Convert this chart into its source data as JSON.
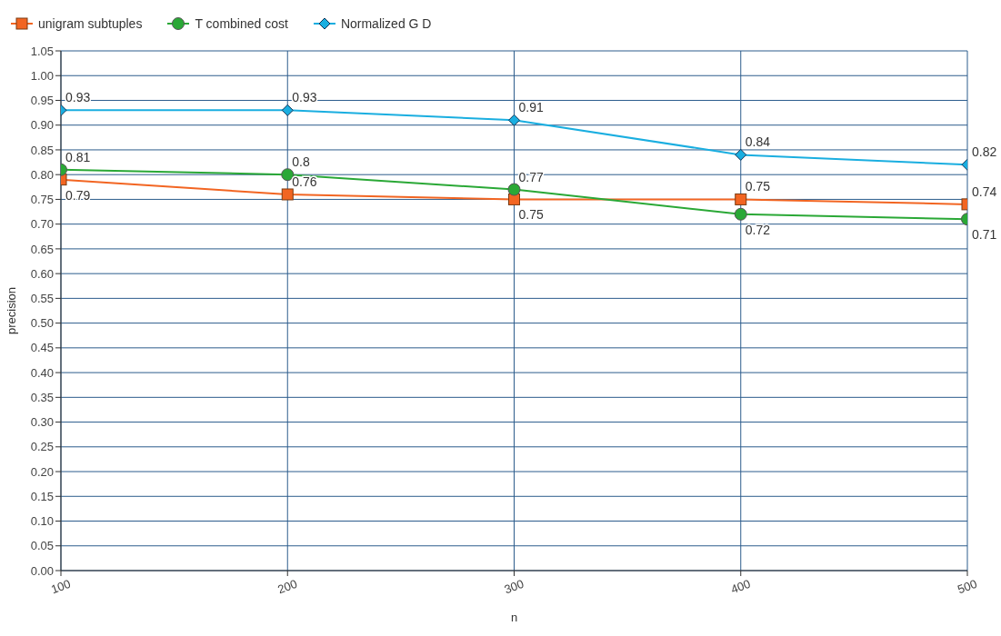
{
  "chart_data": {
    "type": "line",
    "xlabel": "n",
    "ylabel": "precision",
    "x": [
      100,
      200,
      300,
      400,
      500
    ],
    "xlim": [
      100,
      500
    ],
    "xticks": [
      100,
      200,
      300,
      400,
      500
    ],
    "ylim": [
      0,
      1.05
    ],
    "yticks": [
      {
        "value": 0,
        "label": "0.00"
      },
      {
        "value": 0.05,
        "label": "0.05"
      },
      {
        "value": 0.1,
        "label": "0.10"
      },
      {
        "value": 0.15,
        "label": "0.15"
      },
      {
        "value": 0.2,
        "label": "0.20"
      },
      {
        "value": 0.25,
        "label": "0.25"
      },
      {
        "value": 0.3,
        "label": "0.30"
      },
      {
        "value": 0.35,
        "label": "0.35"
      },
      {
        "value": 0.4,
        "label": "0.40"
      },
      {
        "value": 0.45,
        "label": "0.45"
      },
      {
        "value": 0.5,
        "label": "0.50"
      },
      {
        "value": 0.55,
        "label": "0.55"
      },
      {
        "value": 0.6,
        "label": "0.60"
      },
      {
        "value": 0.65,
        "label": "0.65"
      },
      {
        "value": 0.7,
        "label": "0.70"
      },
      {
        "value": 0.75,
        "label": "0.75"
      },
      {
        "value": 0.8,
        "label": "0.80"
      },
      {
        "value": 0.85,
        "label": "0.85"
      },
      {
        "value": 0.9,
        "label": "0.90"
      },
      {
        "value": 0.95,
        "label": "0.95"
      },
      {
        "value": 1,
        "label": "1.00"
      },
      {
        "value": 1.05,
        "label": "1.05"
      }
    ],
    "grid": true,
    "legend": "top left",
    "data_labels": true,
    "series": [
      {
        "name": "unigram subtuples",
        "color": "#f26522",
        "marker": "square",
        "values": [
          0.79,
          0.76,
          0.75,
          0.75,
          0.74
        ]
      },
      {
        "name": "T combined cost",
        "color": "#2aa836",
        "marker": "circle",
        "values": [
          0.81,
          0.8,
          0.77,
          0.72,
          0.71
        ]
      },
      {
        "name": "Normalized G D",
        "color": "#1aaee0",
        "marker": "diamond",
        "values": [
          0.93,
          0.93,
          0.91,
          0.84,
          0.82
        ]
      }
    ]
  }
}
